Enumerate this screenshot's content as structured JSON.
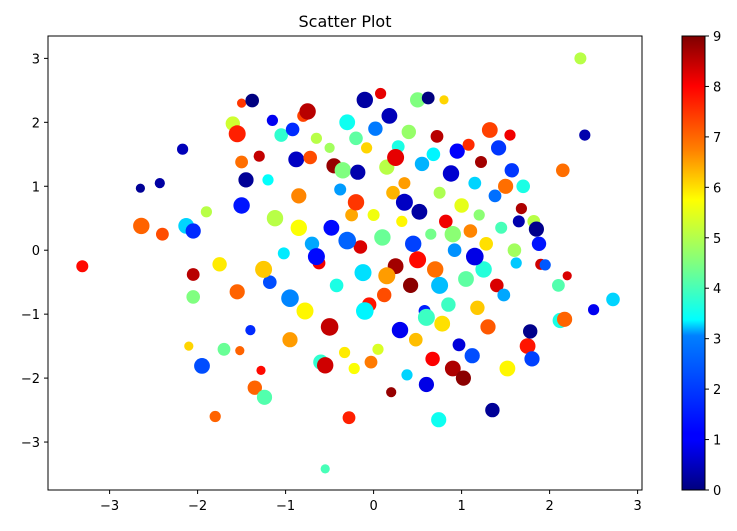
{
  "chart_data": {
    "type": "scatter",
    "title": "Scatter Plot",
    "xlabel": "",
    "ylabel": "",
    "xlim": [
      -3.7,
      3.05
    ],
    "ylim": [
      -3.75,
      3.35
    ],
    "x_ticks": [
      -3,
      -2,
      -1,
      0,
      1,
      2,
      3
    ],
    "y_ticks": [
      -3,
      -2,
      -1,
      0,
      1,
      2,
      3
    ],
    "x_tick_labels": [
      "−3",
      "−2",
      "−1",
      "0",
      "1",
      "2",
      "3"
    ],
    "y_tick_labels": [
      "−3",
      "−2",
      "−1",
      "0",
      "1",
      "2",
      "3"
    ],
    "grid": false,
    "colormap": "jet",
    "colorbar": {
      "range": [
        0,
        9
      ],
      "ticks": [
        0,
        1,
        2,
        3,
        4,
        5,
        6,
        7,
        8,
        9
      ],
      "tick_labels": [
        "0",
        "1",
        "2",
        "3",
        "4",
        "5",
        "6",
        "7",
        "8",
        "9"
      ]
    },
    "points": [
      [
        -3.31,
        -0.25,
        7.8,
        70
      ],
      [
        -2.65,
        0.97,
        0.2,
        40
      ],
      [
        -2.64,
        0.38,
        7.0,
        130
      ],
      [
        -2.43,
        1.05,
        0.3,
        50
      ],
      [
        -2.4,
        0.25,
        7.2,
        80
      ],
      [
        -2.17,
        1.58,
        0.5,
        60
      ],
      [
        -2.13,
        0.38,
        3.0,
        120
      ],
      [
        -2.1,
        -1.5,
        6.0,
        40
      ],
      [
        -2.05,
        0.3,
        1.5,
        110
      ],
      [
        -2.05,
        -0.38,
        8.5,
        80
      ],
      [
        -2.05,
        -0.73,
        4.5,
        90
      ],
      [
        -1.95,
        -1.81,
        1.8,
        120
      ],
      [
        -1.9,
        0.6,
        5.0,
        60
      ],
      [
        -1.8,
        -2.6,
        7.0,
        60
      ],
      [
        -1.75,
        -0.22,
        5.8,
        100
      ],
      [
        -1.7,
        -1.55,
        4.3,
        80
      ],
      [
        -1.6,
        1.98,
        5.2,
        100
      ],
      [
        -1.55,
        1.82,
        7.6,
        140
      ],
      [
        -1.55,
        -0.65,
        7.0,
        110
      ],
      [
        -1.52,
        -1.57,
        7.0,
        40
      ],
      [
        -1.5,
        2.3,
        7.4,
        40
      ],
      [
        -1.5,
        1.38,
        6.9,
        80
      ],
      [
        -1.5,
        0.7,
        1.3,
        130
      ],
      [
        -1.45,
        1.1,
        0.2,
        110
      ],
      [
        -1.4,
        -1.25,
        1.5,
        50
      ],
      [
        -1.38,
        2.34,
        0.0,
        90
      ],
      [
        -1.35,
        -2.15,
        7.0,
        100
      ],
      [
        -1.3,
        1.47,
        8.4,
        60
      ],
      [
        -1.28,
        -1.88,
        7.8,
        40
      ],
      [
        -1.24,
        -2.3,
        4.1,
        110
      ],
      [
        -1.2,
        1.1,
        3.4,
        60
      ],
      [
        -1.18,
        -0.5,
        1.8,
        90
      ],
      [
        -1.15,
        2.03,
        1.0,
        60
      ],
      [
        -1.12,
        0.5,
        5.0,
        130
      ],
      [
        -1.05,
        1.8,
        3.8,
        90
      ],
      [
        -1.02,
        -0.05,
        3.2,
        70
      ],
      [
        -0.95,
        -1.4,
        6.5,
        110
      ],
      [
        -0.92,
        1.89,
        1.5,
        90
      ],
      [
        -0.88,
        1.42,
        0.6,
        120
      ],
      [
        -0.85,
        0.85,
        6.7,
        110
      ],
      [
        -0.8,
        2.1,
        7.3,
        70
      ],
      [
        -0.78,
        -0.95,
        5.7,
        140
      ],
      [
        -0.75,
        2.17,
        8.5,
        130
      ],
      [
        -0.72,
        1.45,
        7.2,
        90
      ],
      [
        -0.7,
        0.1,
        2.6,
        100
      ],
      [
        -0.65,
        1.75,
        5.0,
        60
      ],
      [
        -0.62,
        -0.2,
        8.0,
        80
      ],
      [
        -0.6,
        -1.75,
        3.8,
        110
      ],
      [
        -0.55,
        -1.8,
        8.3,
        130
      ],
      [
        -0.55,
        -3.42,
        4.0,
        40
      ],
      [
        -0.5,
        1.6,
        4.8,
        50
      ],
      [
        -0.48,
        0.35,
        1.2,
        120
      ],
      [
        -0.45,
        1.32,
        8.8,
        110
      ],
      [
        -0.42,
        -0.55,
        3.6,
        90
      ],
      [
        -0.38,
        0.95,
        2.5,
        70
      ],
      [
        -0.35,
        1.25,
        4.5,
        130
      ],
      [
        -0.33,
        -1.6,
        5.8,
        60
      ],
      [
        -0.3,
        2.0,
        3.5,
        120
      ],
      [
        -0.28,
        -2.62,
        7.6,
        80
      ],
      [
        -0.25,
        0.55,
        6.4,
        80
      ],
      [
        -0.22,
        -1.85,
        5.6,
        60
      ],
      [
        -0.2,
        1.75,
        4.2,
        90
      ],
      [
        -0.18,
        1.22,
        0.4,
        110
      ],
      [
        -0.15,
        0.05,
        8.2,
        90
      ],
      [
        -0.12,
        -0.35,
        3.1,
        140
      ],
      [
        -0.1,
        2.35,
        0.3,
        130
      ],
      [
        -0.08,
        1.6,
        6.0,
        60
      ],
      [
        -0.05,
        -0.85,
        7.7,
        100
      ],
      [
        -0.03,
        -1.75,
        6.8,
        80
      ],
      [
        0.0,
        0.55,
        5.5,
        70
      ],
      [
        0.02,
        1.9,
        2.2,
        100
      ],
      [
        0.05,
        -1.55,
        5.3,
        60
      ],
      [
        0.08,
        2.45,
        8.1,
        60
      ],
      [
        0.1,
        0.2,
        4.3,
        130
      ],
      [
        0.12,
        -0.7,
        7.2,
        100
      ],
      [
        0.15,
        1.3,
        5.0,
        110
      ],
      [
        0.18,
        2.1,
        0.5,
        120
      ],
      [
        0.2,
        -2.22,
        8.8,
        50
      ],
      [
        0.22,
        0.9,
        6.3,
        90
      ],
      [
        0.25,
        -0.25,
        8.7,
        120
      ],
      [
        0.28,
        1.62,
        3.6,
        80
      ],
      [
        0.3,
        -1.25,
        1.0,
        130
      ],
      [
        0.32,
        0.45,
        5.7,
        60
      ],
      [
        0.35,
        1.05,
        6.5,
        70
      ],
      [
        0.38,
        -1.95,
        3.0,
        60
      ],
      [
        0.4,
        1.85,
        4.7,
        100
      ],
      [
        0.42,
        -0.55,
        8.9,
        110
      ],
      [
        0.45,
        0.1,
        1.7,
        130
      ],
      [
        0.48,
        -1.4,
        6.2,
        90
      ],
      [
        0.5,
        2.35,
        4.5,
        110
      ],
      [
        0.52,
        0.6,
        0.3,
        120
      ],
      [
        0.55,
        1.35,
        2.7,
        100
      ],
      [
        0.58,
        -0.95,
        1.4,
        70
      ],
      [
        0.6,
        -2.1,
        0.9,
        110
      ],
      [
        0.62,
        2.38,
        0.0,
        80
      ],
      [
        0.65,
        0.25,
        4.4,
        60
      ],
      [
        0.67,
        -1.7,
        7.9,
        100
      ],
      [
        0.68,
        1.5,
        3.3,
        90
      ],
      [
        0.7,
        -0.3,
        6.9,
        130
      ],
      [
        0.72,
        1.78,
        8.5,
        80
      ],
      [
        0.74,
        -2.65,
        3.5,
        110
      ],
      [
        0.75,
        0.9,
        4.9,
        70
      ],
      [
        0.78,
        -1.15,
        5.9,
        120
      ],
      [
        0.8,
        2.35,
        6.0,
        40
      ],
      [
        0.82,
        0.45,
        8.0,
        90
      ],
      [
        0.85,
        -0.85,
        3.9,
        100
      ],
      [
        0.88,
        1.2,
        0.7,
        130
      ],
      [
        0.9,
        -1.85,
        8.6,
        120
      ],
      [
        0.92,
        0.0,
        2.4,
        90
      ],
      [
        0.95,
        1.55,
        1.1,
        110
      ],
      [
        0.97,
        -1.48,
        0.8,
        80
      ],
      [
        1.0,
        0.7,
        5.4,
        100
      ],
      [
        1.02,
        -2.0,
        8.9,
        110
      ],
      [
        1.05,
        -0.45,
        4.2,
        120
      ],
      [
        1.08,
        1.65,
        7.5,
        70
      ],
      [
        1.1,
        0.3,
        6.7,
        90
      ],
      [
        1.12,
        -1.65,
        1.8,
        110
      ],
      [
        1.15,
        1.05,
        3.0,
        80
      ],
      [
        1.18,
        -0.9,
        6.1,
        100
      ],
      [
        1.2,
        0.55,
        4.6,
        60
      ],
      [
        1.22,
        1.38,
        8.7,
        70
      ],
      [
        1.25,
        -0.3,
        3.7,
        130
      ],
      [
        1.28,
        0.1,
        5.9,
        90
      ],
      [
        1.3,
        -1.2,
        7.1,
        110
      ],
      [
        1.32,
        1.88,
        7.3,
        120
      ],
      [
        1.35,
        -2.5,
        0.2,
        100
      ],
      [
        1.38,
        0.85,
        2.1,
        80
      ],
      [
        1.4,
        -0.55,
        8.2,
        90
      ],
      [
        1.42,
        1.6,
        1.6,
        110
      ],
      [
        1.45,
        0.35,
        4.0,
        70
      ],
      [
        1.48,
        -0.7,
        2.6,
        80
      ],
      [
        1.5,
        1.0,
        6.9,
        110
      ],
      [
        1.52,
        -1.85,
        5.7,
        120
      ],
      [
        1.55,
        1.8,
        8.0,
        60
      ],
      [
        1.57,
        1.25,
        1.6,
        100
      ],
      [
        1.6,
        0.0,
        4.8,
        90
      ],
      [
        1.62,
        -0.2,
        2.9,
        60
      ],
      [
        1.65,
        0.45,
        0.4,
        70
      ],
      [
        1.68,
        0.65,
        8.6,
        60
      ],
      [
        1.7,
        1.0,
        3.6,
        90
      ],
      [
        1.75,
        -1.5,
        7.7,
        120
      ],
      [
        1.78,
        -1.27,
        0.1,
        100
      ],
      [
        1.8,
        -1.7,
        1.7,
        110
      ],
      [
        1.82,
        0.45,
        5.0,
        80
      ],
      [
        1.85,
        0.33,
        0.1,
        110
      ],
      [
        1.88,
        0.1,
        1.3,
        100
      ],
      [
        1.9,
        -0.22,
        8.3,
        60
      ],
      [
        1.95,
        -0.23,
        1.9,
        60
      ],
      [
        2.1,
        -0.55,
        4.1,
        80
      ],
      [
        2.12,
        -1.1,
        3.6,
        110
      ],
      [
        2.15,
        1.25,
        6.9,
        90
      ],
      [
        2.17,
        -1.08,
        7.0,
        110
      ],
      [
        2.2,
        -0.4,
        8.2,
        40
      ],
      [
        2.35,
        3.0,
        5.0,
        70
      ],
      [
        2.4,
        1.8,
        0.4,
        60
      ],
      [
        2.5,
        -0.93,
        1.0,
        60
      ],
      [
        2.72,
        -0.77,
        3.0,
        90
      ],
      [
        -0.3,
        0.15,
        2.0,
        150
      ],
      [
        0.15,
        -0.4,
        6.5,
        140
      ],
      [
        -0.65,
        -0.1,
        1.2,
        140
      ],
      [
        0.5,
        -0.15,
        7.8,
        140
      ],
      [
        -0.1,
        -0.95,
        3.3,
        150
      ],
      [
        0.35,
        0.75,
        0.6,
        140
      ],
      [
        -0.85,
        0.35,
        5.6,
        130
      ],
      [
        0.75,
        -0.55,
        2.8,
        140
      ],
      [
        -0.5,
        -1.2,
        8.4,
        150
      ],
      [
        0.9,
        0.25,
        4.6,
        130
      ],
      [
        -1.25,
        -0.3,
        6.1,
        140
      ],
      [
        1.15,
        -0.1,
        0.9,
        150
      ],
      [
        -0.2,
        0.75,
        7.4,
        130
      ],
      [
        0.6,
        -1.05,
        3.9,
        140
      ],
      [
        -0.95,
        -0.75,
        2.3,
        150
      ],
      [
        0.25,
        1.45,
        8.1,
        140
      ]
    ]
  }
}
